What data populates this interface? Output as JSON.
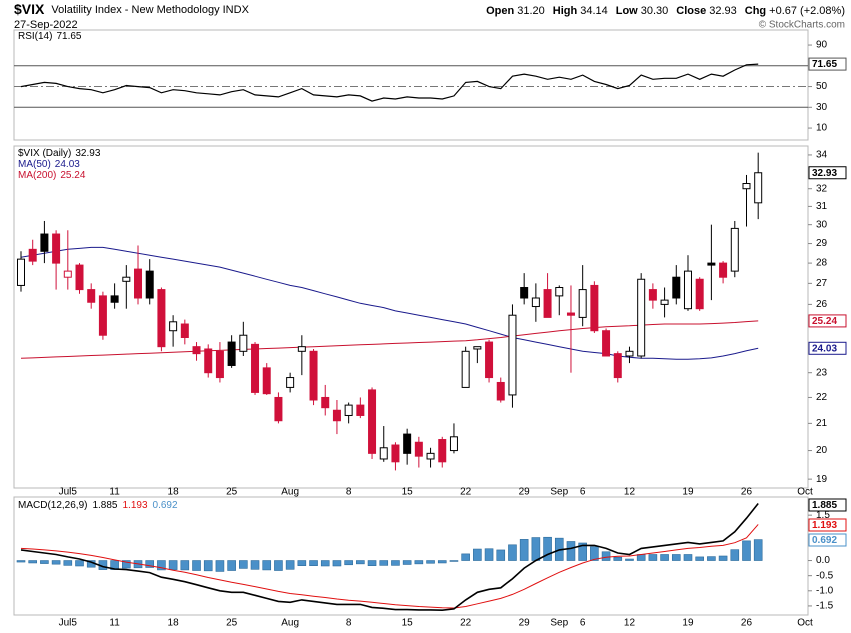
{
  "header": {
    "symbol": "$VIX",
    "name": "Volatility Index - New Methodology INDX",
    "date": "27-Sep-2022",
    "quote": [
      {
        "label": "Open",
        "value": "31.20"
      },
      {
        "label": "High",
        "value": "34.14"
      },
      {
        "label": "Low",
        "value": "30.30"
      },
      {
        "label": "Close",
        "value": "32.93"
      },
      {
        "label": "Chg",
        "value": "+0.67 (+2.08%)"
      }
    ],
    "credit": "© StockCharts.com"
  },
  "chart_data": [
    {
      "type": "line",
      "title": "RSI(14)",
      "series": [
        {
          "name": "RSI(14)",
          "color": "#000000",
          "values": [
            50,
            52,
            54,
            53,
            50,
            48,
            47,
            44,
            47,
            51,
            50,
            49,
            44,
            47,
            46,
            44,
            43,
            42,
            45,
            47,
            42,
            41,
            40,
            44,
            48,
            42,
            41,
            40,
            42,
            41,
            36,
            39,
            38,
            40,
            39,
            39,
            38,
            41,
            54,
            55,
            50,
            48,
            60,
            62,
            60,
            57,
            59,
            57,
            61,
            55,
            52,
            48,
            51,
            61,
            57,
            58,
            58,
            62,
            57,
            62,
            60,
            66,
            71,
            71.65,
            null,
            null,
            null,
            null
          ]
        }
      ],
      "ylim": [
        -1.5,
        104.5
      ],
      "yticks": [
        10,
        30,
        50,
        90
      ],
      "ref_lines": [
        70,
        50,
        30
      ]
    },
    {
      "type": "candlestick",
      "title": "$VIX (Daily)",
      "categories": [
        null,
        null,
        null,
        null,
        "Jul5",
        null,
        null,
        null,
        "11",
        null,
        null,
        null,
        null,
        "18",
        null,
        null,
        null,
        null,
        "25",
        null,
        null,
        null,
        null,
        "Aug",
        null,
        null,
        null,
        null,
        "8",
        null,
        null,
        null,
        null,
        "15",
        null,
        null,
        null,
        null,
        "22",
        null,
        null,
        null,
        null,
        "29",
        null,
        null,
        "Sep",
        null,
        "6",
        null,
        null,
        null,
        "12",
        null,
        null,
        null,
        null,
        "19",
        null,
        null,
        null,
        null,
        "26",
        null,
        null,
        null,
        null,
        "Oct"
      ],
      "open": [
        26.9,
        28.7,
        29.5,
        29.5,
        27.3,
        27.9,
        26.7,
        26.4,
        26.4,
        27.1,
        27.7,
        27.6,
        26.7,
        24.8,
        25.1,
        24.1,
        24.0,
        23.9,
        24.3,
        23.9,
        24.2,
        23.2,
        22.0,
        22.4,
        23.9,
        23.9,
        22.0,
        21.5,
        21.3,
        21.7,
        22.3,
        19.7,
        20.2,
        20.6,
        20.3,
        19.7,
        20.4,
        20.0,
        22.4,
        24.0,
        24.3,
        22.6,
        22.1,
        26.8,
        25.9,
        26.7,
        26.4,
        25.6,
        25.4,
        26.9,
        24.8,
        23.8,
        23.7,
        23.7,
        26.7,
        26.0,
        27.3,
        25.8,
        27.2,
        28.0,
        28.0,
        27.6,
        32.0,
        31.2,
        null,
        null,
        null,
        null
      ],
      "high": [
        28.6,
        29.2,
        30.2,
        29.7,
        29.7,
        28.0,
        27.0,
        26.6,
        27.0,
        27.9,
        28.9,
        28.2,
        26.8,
        25.5,
        25.3,
        24.3,
        24.2,
        24.3,
        24.6,
        25.2,
        24.3,
        23.4,
        22.2,
        23.0,
        24.6,
        24.0,
        22.5,
        21.9,
        21.8,
        22.0,
        22.4,
        20.9,
        20.3,
        20.8,
        20.5,
        20.1,
        20.5,
        21.0,
        24.1,
        24.1,
        24.4,
        22.8,
        26.0,
        27.5,
        27.0,
        27.5,
        26.9,
        26.9,
        27.9,
        27.1,
        24.9,
        23.9,
        24.1,
        27.5,
        27.0,
        26.8,
        27.9,
        28.4,
        27.3,
        30.0,
        28.1,
        30.2,
        32.8,
        34.14,
        null,
        null,
        null,
        null
      ],
      "low": [
        26.6,
        27.9,
        28.0,
        26.7,
        26.7,
        26.5,
        25.8,
        24.4,
        25.8,
        25.8,
        26.0,
        26.0,
        23.9,
        24.1,
        24.2,
        23.5,
        22.8,
        22.6,
        23.2,
        23.7,
        22.1,
        22.1,
        21.0,
        22.2,
        22.9,
        21.7,
        21.3,
        20.6,
        21.0,
        21.2,
        19.7,
        19.6,
        19.3,
        19.5,
        19.4,
        19.4,
        19.4,
        19.9,
        22.4,
        23.4,
        22.6,
        21.8,
        21.6,
        26.0,
        25.2,
        25.4,
        25.5,
        23.0,
        25.0,
        24.7,
        23.7,
        22.6,
        23.4,
        23.6,
        25.8,
        25.4,
        26.0,
        25.7,
        25.7,
        26.2,
        27.0,
        27.3,
        29.9,
        30.3,
        null,
        null,
        null,
        null
      ],
      "close": [
        28.2,
        28.1,
        28.6,
        28.0,
        27.6,
        26.7,
        26.1,
        24.6,
        26.1,
        27.3,
        26.3,
        26.3,
        24.1,
        25.2,
        24.5,
        23.8,
        23.0,
        22.8,
        23.3,
        24.6,
        22.2,
        22.15,
        21.1,
        22.8,
        24.1,
        21.9,
        21.6,
        21.1,
        21.7,
        21.3,
        19.9,
        20.1,
        19.6,
        19.9,
        19.8,
        19.9,
        19.6,
        20.5,
        23.9,
        24.1,
        22.8,
        21.9,
        25.5,
        26.3,
        26.3,
        25.4,
        26.8,
        25.5,
        26.7,
        24.8,
        23.7,
        22.8,
        23.9,
        27.2,
        26.2,
        26.2,
        26.3,
        27.6,
        25.8,
        27.9,
        27.3,
        29.8,
        32.3,
        32.93,
        null,
        null,
        null,
        null
      ],
      "up_color": "#000000",
      "down_color": "#d0103a",
      "close_color": "#000000",
      "series": [
        {
          "name": "MA(50)",
          "color": "#1a1a8c",
          "values": [
            28.3,
            28.4,
            28.5,
            28.6,
            28.7,
            28.75,
            28.8,
            28.8,
            28.7,
            28.6,
            28.5,
            28.4,
            28.3,
            28.2,
            28.1,
            28.0,
            27.9,
            27.8,
            27.65,
            27.5,
            27.35,
            27.2,
            27.05,
            26.9,
            26.8,
            26.65,
            26.5,
            26.35,
            26.2,
            26.05,
            25.95,
            25.85,
            25.7,
            25.6,
            25.5,
            25.4,
            25.3,
            25.2,
            25.1,
            24.95,
            24.8,
            24.65,
            24.5,
            24.4,
            24.3,
            24.2,
            24.1,
            24.0,
            23.9,
            23.85,
            23.8,
            23.7,
            23.65,
            23.6,
            23.6,
            23.58,
            23.56,
            23.56,
            23.58,
            23.62,
            23.7,
            23.8,
            23.92,
            24.03,
            null,
            null,
            null,
            null
          ]
        },
        {
          "name": "MA(200)",
          "color": "#c8102e",
          "values": [
            23.6,
            23.62,
            23.64,
            23.66,
            23.68,
            23.7,
            23.72,
            23.74,
            23.76,
            23.78,
            23.8,
            23.82,
            23.84,
            23.86,
            23.88,
            23.9,
            23.92,
            23.94,
            23.96,
            23.98,
            24.0,
            24.02,
            24.04,
            24.06,
            24.08,
            24.1,
            24.12,
            24.14,
            24.16,
            24.18,
            24.2,
            24.22,
            24.24,
            24.26,
            24.28,
            24.3,
            24.32,
            24.34,
            24.36,
            24.4,
            24.45,
            24.5,
            24.56,
            24.62,
            24.68,
            24.74,
            24.8,
            24.85,
            24.9,
            24.94,
            24.98,
            25.0,
            25.02,
            25.05,
            25.08,
            25.1,
            25.1,
            25.1,
            25.1,
            25.12,
            25.14,
            25.17,
            25.21,
            25.24,
            null,
            null,
            null,
            null
          ]
        }
      ],
      "log": true,
      "ylim": [
        18.7,
        34.55
      ],
      "yticks": [
        19,
        20,
        21,
        22,
        23,
        26,
        27,
        28,
        29,
        30,
        31,
        32,
        34
      ]
    },
    {
      "type": "macd",
      "title": "MACD(12,26,9)",
      "categories": [
        null,
        null,
        null,
        null,
        "Jul5",
        null,
        null,
        null,
        "11",
        null,
        null,
        null,
        null,
        "18",
        null,
        null,
        null,
        null,
        "25",
        null,
        null,
        null,
        null,
        "Aug",
        null,
        null,
        null,
        null,
        "8",
        null,
        null,
        null,
        null,
        "15",
        null,
        null,
        null,
        null,
        "22",
        null,
        null,
        null,
        null,
        "29",
        null,
        null,
        "Sep",
        null,
        "6",
        null,
        null,
        null,
        "12",
        null,
        null,
        null,
        null,
        "19",
        null,
        null,
        null,
        null,
        "26",
        null,
        null,
        null,
        null,
        "Oct"
      ],
      "macd": {
        "color": "#000000",
        "values": [
          0.35,
          0.3,
          0.25,
          0.2,
          0.12,
          0.05,
          -0.05,
          -0.2,
          -0.28,
          -0.3,
          -0.35,
          -0.4,
          -0.55,
          -0.62,
          -0.7,
          -0.8,
          -0.9,
          -1.0,
          -1.05,
          -1.05,
          -1.15,
          -1.25,
          -1.35,
          -1.38,
          -1.3,
          -1.35,
          -1.4,
          -1.45,
          -1.45,
          -1.45,
          -1.55,
          -1.58,
          -1.62,
          -1.62,
          -1.63,
          -1.63,
          -1.64,
          -1.6,
          -1.3,
          -1.05,
          -0.95,
          -0.9,
          -0.6,
          -0.25,
          0.0,
          0.2,
          0.35,
          0.4,
          0.5,
          0.5,
          0.4,
          0.25,
          0.2,
          0.4,
          0.45,
          0.5,
          0.55,
          0.6,
          0.55,
          0.6,
          0.65,
          0.95,
          1.4,
          1.885,
          null,
          null,
          null,
          null
        ]
      },
      "signal": {
        "color": "#e01010",
        "values": [
          0.4,
          0.38,
          0.35,
          0.32,
          0.28,
          0.23,
          0.17,
          0.1,
          0.02,
          -0.05,
          -0.11,
          -0.17,
          -0.24,
          -0.32,
          -0.39,
          -0.47,
          -0.56,
          -0.64,
          -0.72,
          -0.79,
          -0.86,
          -0.94,
          -1.02,
          -1.09,
          -1.13,
          -1.18,
          -1.22,
          -1.27,
          -1.31,
          -1.34,
          -1.38,
          -1.42,
          -1.46,
          -1.49,
          -1.52,
          -1.54,
          -1.56,
          -1.57,
          -1.52,
          -1.43,
          -1.34,
          -1.25,
          -1.12,
          -0.95,
          -0.76,
          -0.57,
          -0.39,
          -0.23,
          -0.08,
          0.04,
          0.11,
          0.14,
          0.15,
          0.2,
          0.25,
          0.3,
          0.35,
          0.4,
          0.43,
          0.47,
          0.5,
          0.59,
          0.75,
          1.193,
          null,
          null,
          null,
          null
        ]
      },
      "histogram": {
        "color": "#4a90c8",
        "values": [
          -0.05,
          -0.08,
          -0.1,
          -0.12,
          -0.16,
          -0.18,
          -0.22,
          -0.3,
          -0.3,
          -0.25,
          -0.24,
          -0.23,
          -0.31,
          -0.3,
          -0.31,
          -0.33,
          -0.34,
          -0.36,
          -0.33,
          -0.26,
          -0.29,
          -0.31,
          -0.33,
          -0.29,
          -0.17,
          -0.17,
          -0.18,
          -0.18,
          -0.14,
          -0.11,
          -0.17,
          -0.16,
          -0.16,
          -0.13,
          -0.11,
          -0.09,
          -0.08,
          -0.03,
          0.22,
          0.38,
          0.39,
          0.35,
          0.52,
          0.7,
          0.76,
          0.77,
          0.74,
          0.63,
          0.58,
          0.46,
          0.29,
          0.11,
          0.05,
          0.2,
          0.2,
          0.2,
          0.2,
          0.2,
          0.12,
          0.13,
          0.15,
          0.36,
          0.65,
          0.692,
          null,
          null,
          null,
          null
        ]
      },
      "ylim": [
        -1.8,
        2.1
      ],
      "yticks": [
        -1.5,
        {
          "value": -1,
          "label": "-1.0"
        },
        -0.5,
        {
          "value": 0,
          "label": "0.0"
        },
        1.5
      ]
    }
  ]
}
